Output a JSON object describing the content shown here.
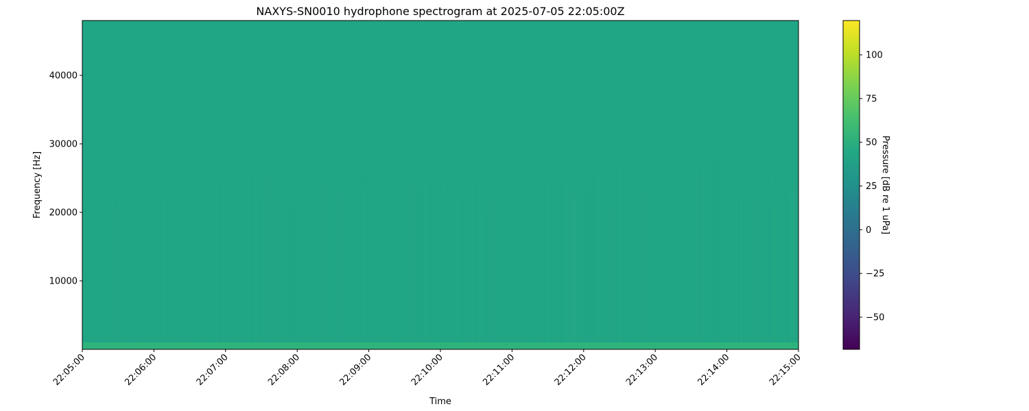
{
  "chart_data": {
    "type": "heatmap",
    "title": "NAXYS-SN0010 hydrophone spectrogram at 2025-07-05 22:05:00Z",
    "xlabel": "Time",
    "ylabel": "Frequency [Hz]",
    "x_ticks": [
      "22:05:00",
      "22:06:00",
      "22:07:00",
      "22:08:00",
      "22:09:00",
      "22:10:00",
      "22:11:00",
      "22:12:00",
      "22:13:00",
      "22:14:00",
      "22:15:00"
    ],
    "y_ticks": [
      10000,
      20000,
      30000,
      40000
    ],
    "ylim": [
      0,
      48000
    ],
    "colormap": "viridis",
    "colorbar": {
      "label": "Pressure [dB re 1 uPa]",
      "ticks": [
        -50,
        -25,
        0,
        25,
        50,
        75,
        100
      ],
      "range": [
        -68.4,
        119.6
      ]
    },
    "typical_level_db": 47,
    "low_frequency_band": {
      "range_hz": [
        0,
        1000
      ],
      "level_db": 55
    },
    "colors": {
      "background_fill": "#21a685",
      "low_band": "#2eb37c"
    }
  }
}
